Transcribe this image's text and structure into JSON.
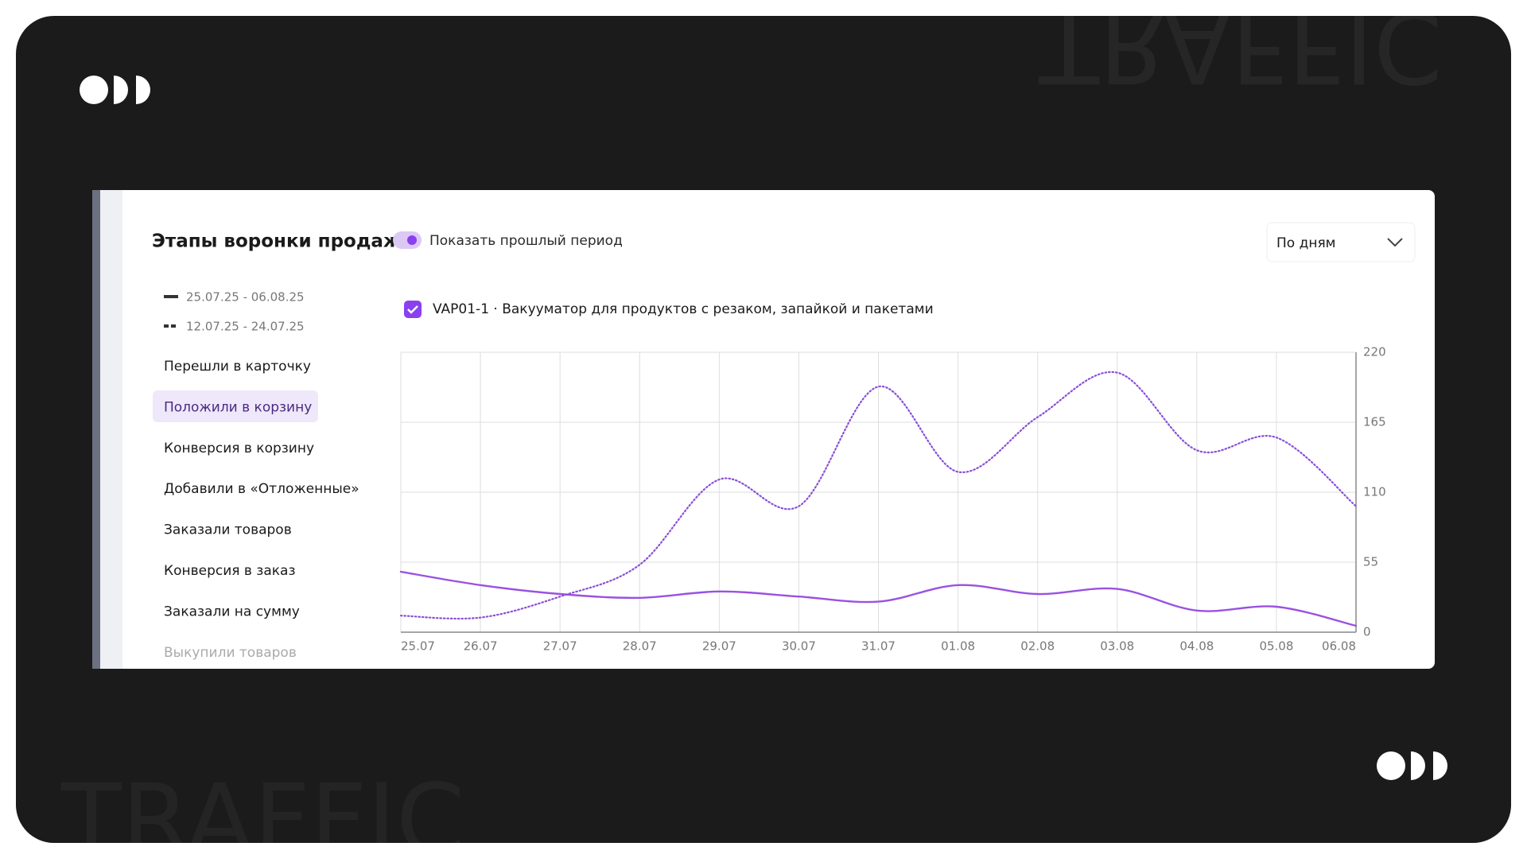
{
  "watermark": "TRAFFIC",
  "panel": {
    "title": "Этапы воронки продаж",
    "toggle_label": "Показать прошлый период",
    "dropdown": "По дням",
    "menu": [
      "Перешли в карточку",
      "Положили в корзину",
      "Конверсия в корзину",
      "Добавили в «Отложенные»",
      "Заказали товаров",
      "Конверсия в заказ",
      "Заказали на сумму",
      "Выкупили товаров"
    ],
    "product": "VAP01-1 · Вакууматор для продуктов с резаком, запайкой и пакетами"
  },
  "chart_data": {
    "type": "line",
    "categories": [
      "25.07",
      "26.07",
      "27.07",
      "28.07",
      "29.07",
      "30.07",
      "31.07",
      "01.08",
      "02.08",
      "03.08",
      "04.08",
      "05.08",
      "06.08"
    ],
    "series": [
      {
        "name": "25.07.25 - 06.08.25",
        "color": "#9b51e0",
        "style": "solid",
        "values": [
          47.5,
          37,
          30,
          27,
          32,
          28,
          24,
          37,
          30,
          34,
          17,
          20,
          5
        ]
      },
      {
        "name": "12.07.25 - 24.07.25",
        "color": "#8a4fd6",
        "style": "dotted",
        "values": [
          13,
          11.5,
          28,
          53,
          120,
          99,
          193,
          126,
          169,
          204,
          143,
          153,
          99
        ]
      }
    ],
    "ylim": [
      0,
      220
    ],
    "yticks": [
      0,
      55,
      110,
      165,
      220
    ],
    "grid": true,
    "y_axis_side": "right"
  }
}
